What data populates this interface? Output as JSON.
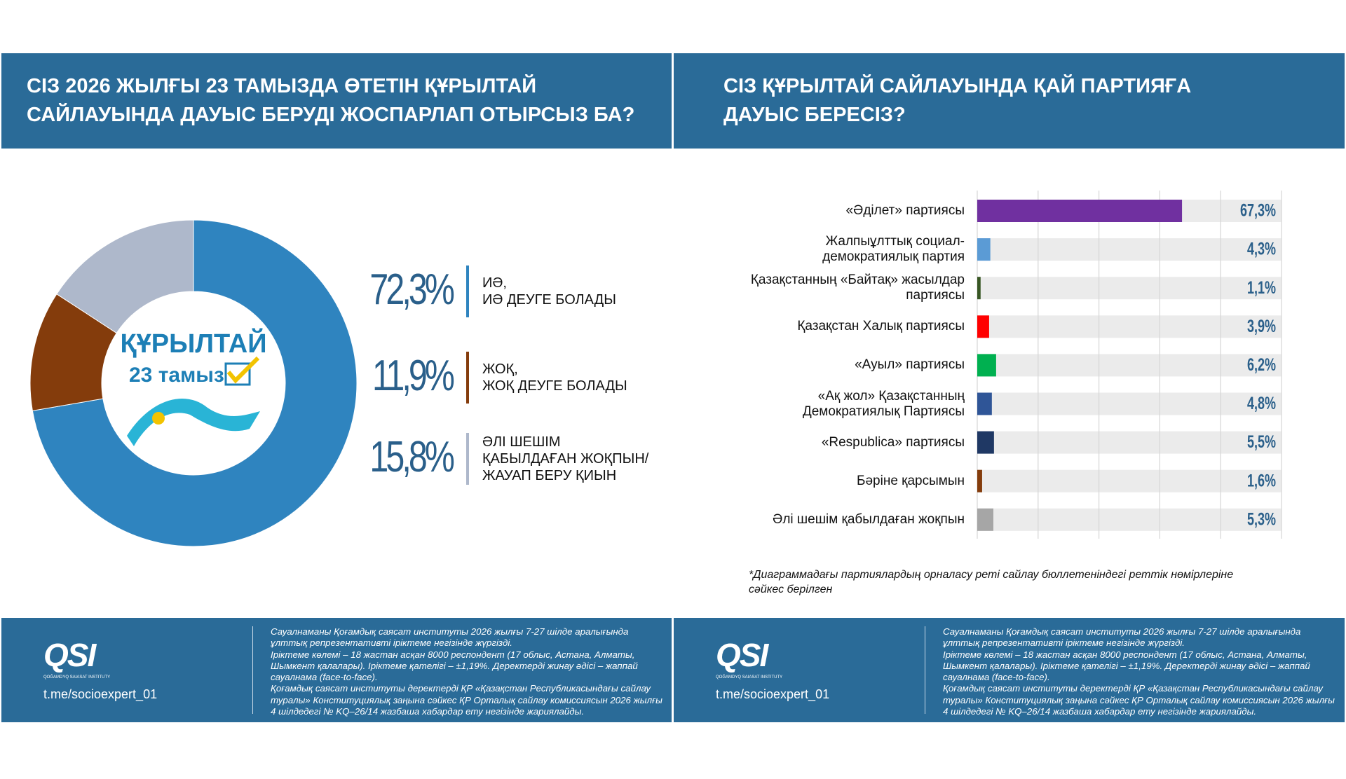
{
  "chart_data": [
    {
      "type": "pie",
      "donut": true,
      "title": "СІЗ 2026 ЖЫЛҒЫ 23 ТАМЫЗДА ӨТЕТІН ҚҰРЫЛТАЙ\nСАЙЛАУЫНДА ДАУЫС БЕРУДІ ЖОСПАРЛАП ОТЫРСЫЗ БА?",
      "center_logo": {
        "title": "ҚҰРЫЛТАЙ",
        "date": "23 тамыз"
      },
      "categories": [
        "ИӘ,\nИӘ ДЕУГЕ БОЛАДЫ",
        "ЖОҚ,\nЖОҚ ДЕУГЕ БОЛАДЫ",
        "ӘЛІ ШЕШІМ\nҚАБЫЛДАҒАН ЖОҚПЫН/\nЖАУАП БЕРУ ҚИЫН"
      ],
      "values": [
        72.3,
        11.9,
        15.8
      ],
      "value_labels": [
        "72,3%",
        "11,9%",
        "15,8%"
      ],
      "colors": [
        "#2f84bf",
        "#843c0c",
        "#aeb8cb"
      ]
    },
    {
      "type": "bar",
      "orientation": "horizontal",
      "title": "СІЗ ҚҰРЫЛТАЙ САЙЛАУЫНДА ҚАЙ ПАРТИЯҒА\nДАУЫС БЕРЕСІЗ?",
      "categories": [
        "«Әділет» партиясы",
        "Жалпыұлттық социал-\nдемократиялық партия",
        "Қазақстанның «Байтақ» жасылдар\nпартиясы",
        "Қазақстан Халық партиясы",
        "«Ауыл» партиясы",
        "«Ақ жол» Қазақстанның\nДемократиялық Партиясы",
        "«Respublica» партиясы",
        "Бәріне қарсымын",
        "Әлі шешім қабылдаған жоқпын"
      ],
      "values": [
        67.3,
        4.3,
        1.1,
        3.9,
        6.2,
        4.8,
        5.5,
        1.6,
        5.3
      ],
      "value_labels": [
        "67,3%",
        "4,3%",
        "1,1%",
        "3,9%",
        "6,2%",
        "4,8%",
        "5,5%",
        "1,6%",
        "5,3%"
      ],
      "colors": [
        "#7030a0",
        "#5b9bd5",
        "#375623",
        "#ff0000",
        "#00b050",
        "#2f5597",
        "#1f3864",
        "#843c0c",
        "#a6a6a6"
      ],
      "xlim": [
        0,
        100
      ],
      "xticks": [
        0,
        20,
        40,
        60,
        80,
        100
      ],
      "grid": true,
      "note": "*Диаграммадағы партиялардың орналасу реті сайлау бюллетеніндегі реттік нөмірлеріне\nсәйкес берілген"
    }
  ],
  "footer": {
    "logo": "QSI",
    "logo_caption": "QOĞAMDYQ SAIASAT INSTITUTY",
    "link": "t.me/socioexpert_01",
    "paragraphs": [
      "Сауалнаманы Қоғамдық саясат институты 2026 жылғы 7-27 шілде аралығында ұлттық репрезентативті іріктеме негізінде жүргізді.",
      "Іріктеме көлемі – 18 жастан асқан 8000 респондент (17 облыс, Астана, Алматы, Шымкент қалалары). Іріктеме қателігі – ±1,19%. Деректерді жинау әдісі – жаппай сауалнама (face-to-face).",
      "Қоғамдық саясат институты деректерді ҚР «Қазақстан Республикасындағы сайлау туралы» Конституциялық заңына сәйкес ҚР Орталық сайлау комиссиясын 2026 жылғы 4 шілдедегі № KQ–26/14 жазбаша хабардар ету негізінде жариялайды."
    ]
  }
}
